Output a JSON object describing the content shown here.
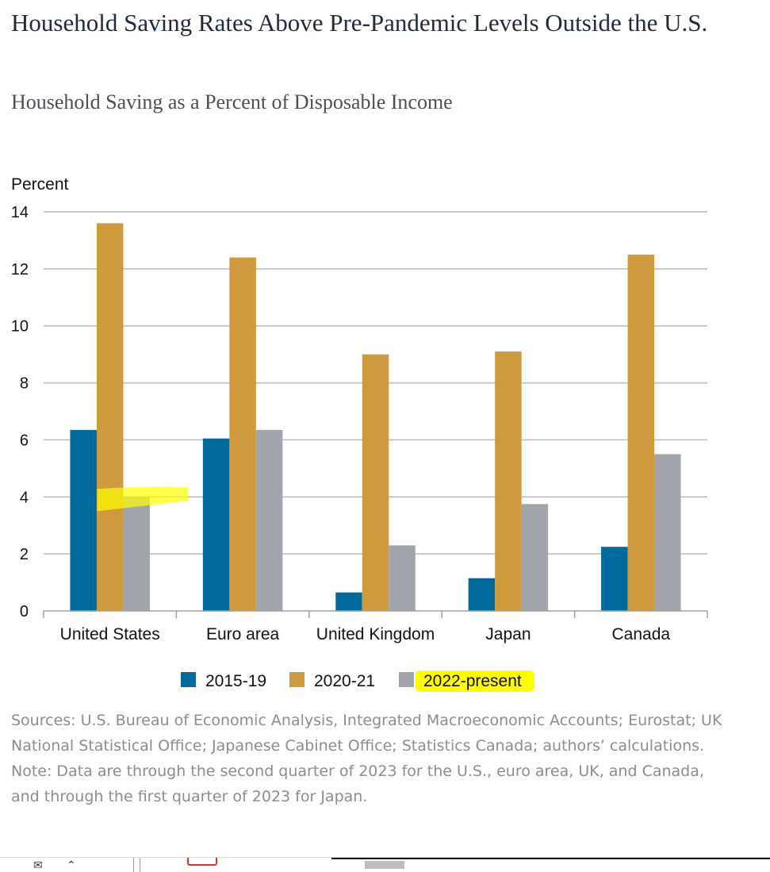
{
  "header": {
    "title": "Household Saving Rates Above Pre-Pandemic Levels Outside the U.S.",
    "subtitle": "Household Saving as a Percent of Disposable Income"
  },
  "chart_data": {
    "type": "bar",
    "ylabel": "Percent",
    "ylim": [
      0,
      14
    ],
    "yticks": [
      0,
      2,
      4,
      6,
      8,
      10,
      12,
      14
    ],
    "grid": true,
    "legend_position": "bottom-center",
    "categories": [
      "United States",
      "Euro area",
      "United Kingdom",
      "Japan",
      "Canada"
    ],
    "series": [
      {
        "name": "2015-19",
        "color": "#006a9c",
        "values": [
          6.35,
          6.05,
          0.65,
          1.15,
          2.25
        ]
      },
      {
        "name": "2020-21",
        "color": "#cf9a3d",
        "values": [
          13.6,
          12.4,
          9.0,
          9.1,
          12.5
        ]
      },
      {
        "name": "2022-present",
        "color": "#a1a4ab",
        "values": [
          4.0,
          6.35,
          2.3,
          3.75,
          5.5
        ]
      }
    ],
    "highlights": {
      "color": "#ffff00",
      "legend_entry": "2022-present",
      "bar": {
        "category": "United States",
        "value": 4.0
      }
    }
  },
  "notes": {
    "sources": "Sources: U.S. Bureau of Economic Analysis, Integrated Macroeconomic Accounts; Eurostat; UK National Statistical Office; Japanese Cabinet Office; Statistics Canada; authors’ calculations.",
    "note": "Note: Data are through the second quarter of 2023 for the U.S., euro area, UK, and Canada, and through the first quarter of 2023 for Japan."
  },
  "taskbar": {
    "icons": [
      "mail-icon",
      "double-chevron-up-icon",
      "pdf-icon"
    ]
  }
}
